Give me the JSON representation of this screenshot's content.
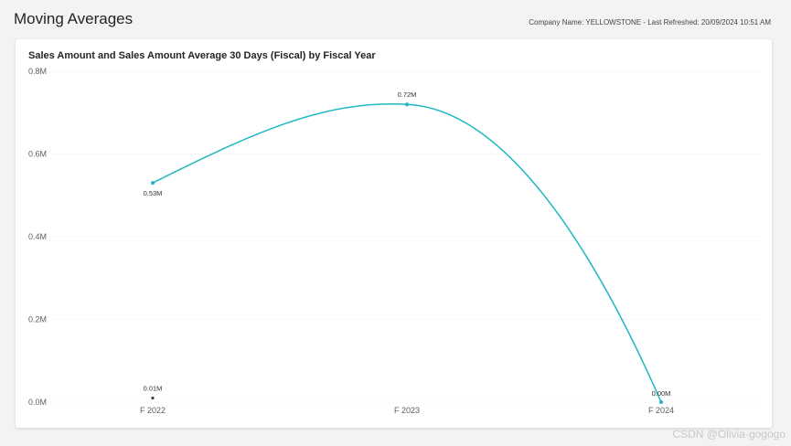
{
  "header": {
    "title": "Moving Averages",
    "meta": "Company Name: YELLOWSTONE - Last Refreshed: 20/09/2024 10:51 AM"
  },
  "chart_data": {
    "type": "line",
    "title": "Sales Amount and Sales Amount Average 30 Days (Fiscal) by Fiscal Year",
    "xlabel": "",
    "ylabel": "",
    "ylim": [
      0,
      800000
    ],
    "yticks": [
      {
        "value": 0,
        "label": "0.0M"
      },
      {
        "value": 200000,
        "label": "0.2M"
      },
      {
        "value": 400000,
        "label": "0.4M"
      },
      {
        "value": 600000,
        "label": "0.6M"
      },
      {
        "value": 800000,
        "label": "0.8M"
      }
    ],
    "categories": [
      "F 2022",
      "F 2023",
      "F 2024"
    ],
    "grid": true,
    "series": [
      {
        "color": "#1fb8c2",
        "values": [
          530000,
          720000,
          0
        ],
        "labels": [
          "0.53M",
          "0.72M",
          "0.00M"
        ]
      },
      {
        "color": "#404040",
        "values": [
          10000,
          null,
          null
        ],
        "labels": [
          "0.01M",
          null,
          null
        ]
      }
    ]
  },
  "watermark": "CSDN @Olivia-gogogo"
}
